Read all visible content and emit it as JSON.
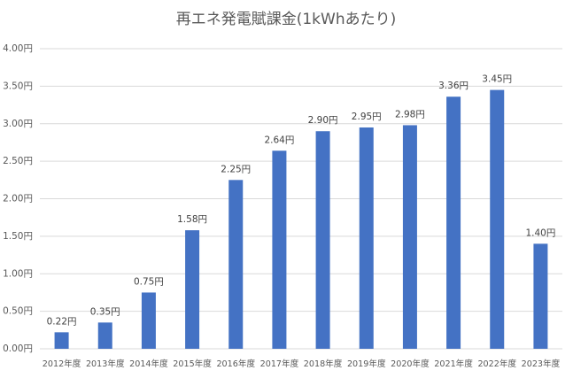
{
  "chart_data": {
    "type": "bar",
    "title": "再エネ発電賦課金(1kWhあたり)",
    "categories": [
      "2012年度",
      "2013年度",
      "2014年度",
      "2015年度",
      "2016年度",
      "2017年度",
      "2018年度",
      "2019年度",
      "2020年度",
      "2021年度",
      "2022年度",
      "2023年度"
    ],
    "values": [
      0.22,
      0.35,
      0.75,
      1.58,
      2.25,
      2.64,
      2.9,
      2.95,
      2.98,
      3.36,
      3.45,
      1.4
    ],
    "value_labels": [
      "0.22円",
      "0.35円",
      "0.75円",
      "1.58円",
      "2.25円",
      "2.64円",
      "2.90円",
      "2.95円",
      "2.98円",
      "3.36円",
      "3.45円",
      "1.40円"
    ],
    "color": "#4472c4",
    "ylim": [
      0,
      4
    ],
    "yticks": [
      {
        "value": 0,
        "label": "0.00円"
      },
      {
        "value": 0.5,
        "label": "0.50円"
      },
      {
        "value": 1,
        "label": "1.00円"
      },
      {
        "value": 1.5,
        "label": "1.50円"
      },
      {
        "value": 2,
        "label": "2.00円"
      },
      {
        "value": 2.5,
        "label": "2.50円"
      },
      {
        "value": 3,
        "label": "3.00円"
      },
      {
        "value": 3.5,
        "label": "3.50円"
      },
      {
        "value": 4,
        "label": "4.00円"
      }
    ],
    "grid": true
  }
}
